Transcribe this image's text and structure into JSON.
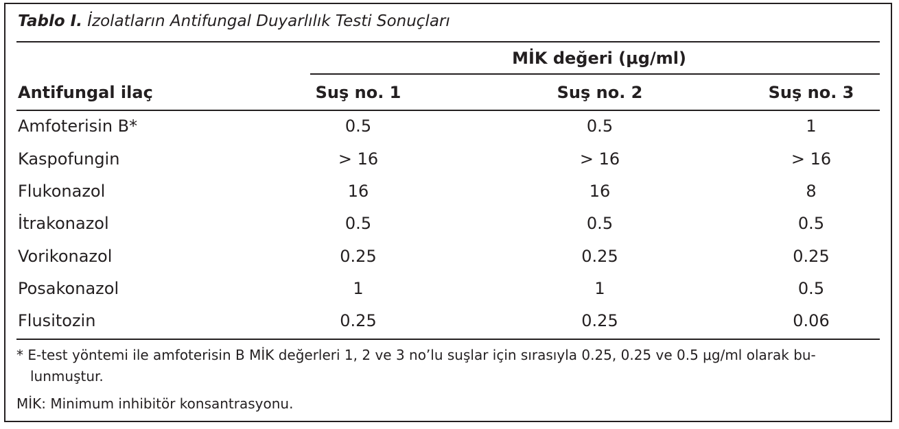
{
  "table": {
    "caption_bold": "Tablo I.",
    "caption_rest": "İzolatların Antifungal Duyarlılık Testi Sonuçları",
    "group_header": "MİK değeri (μg/ml)",
    "columns": [
      "Antifungal ilaç",
      "Suş no. 1",
      "Suş no. 2",
      "Suş no. 3"
    ],
    "rows": [
      [
        "Amfoterisin B*",
        "0.5",
        "0.5",
        "1"
      ],
      [
        "Kaspofungin",
        "> 16",
        "> 16",
        "> 16"
      ],
      [
        "Flukonazol",
        "16",
        "16",
        "8"
      ],
      [
        "İtrakonazol",
        "0.5",
        "0.5",
        "0.5"
      ],
      [
        "Vorikonazol",
        "0.25",
        "0.25",
        "0.25"
      ],
      [
        "Posakonazol",
        "1",
        "1",
        "0.5"
      ],
      [
        "Flusitozin",
        "0.25",
        "0.25",
        "0.06"
      ]
    ],
    "footnote_1a": "* E-test yöntemi ile amfoterisin B MİK değerleri 1, 2 ve 3 no’lu suşlar için sırasıyla 0.25, 0.25 ve 0.5 μg/ml olarak bu-",
    "footnote_1b": "lunmuştur.",
    "footnote_2": "MİK: Minimum inhibitör konsantrasyonu."
  }
}
